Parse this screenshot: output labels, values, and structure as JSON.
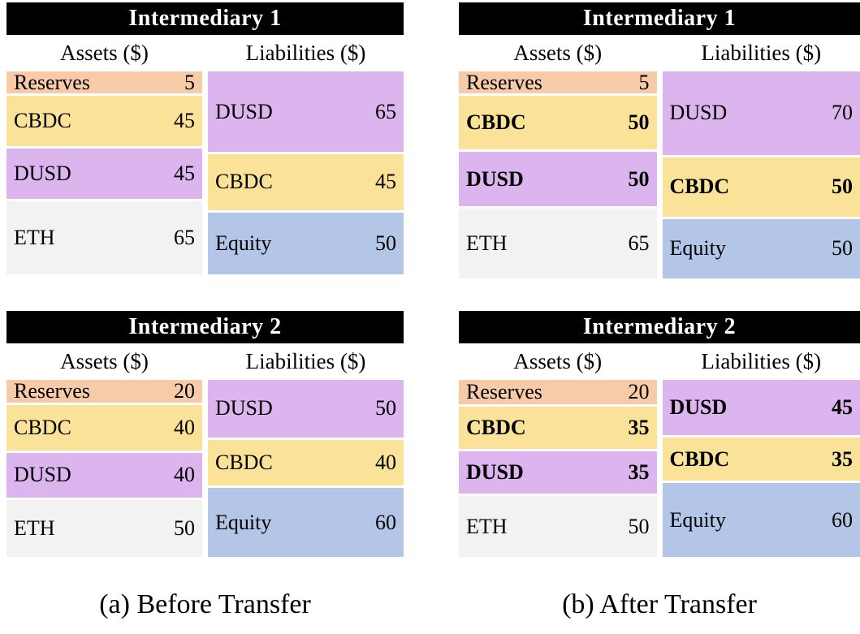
{
  "colors": {
    "reserves": "#f8cba8",
    "cbdc": "#fae399",
    "dusd": "#dcb4ee",
    "eth": "#f2f2f2",
    "equity": "#b4c6e7",
    "title_bg": "#000000",
    "title_text": "#ffffff"
  },
  "panels": [
    {
      "title": "Intermediary 1",
      "assets_header": "Assets ($)",
      "liabilities_header": "Liabilities ($)",
      "assets": [
        {
          "label": "Reserves",
          "value": 5,
          "color_key": "reserves",
          "bold": false
        },
        {
          "label": "CBDC",
          "value": 45,
          "color_key": "cbdc",
          "bold": false
        },
        {
          "label": "DUSD",
          "value": 45,
          "color_key": "dusd",
          "bold": false
        },
        {
          "label": "ETH",
          "value": 65,
          "color_key": "eth",
          "bold": false
        }
      ],
      "liabilities": [
        {
          "label": "DUSD",
          "value": 65,
          "color_key": "dusd",
          "bold": false
        },
        {
          "label": "CBDC",
          "value": 45,
          "color_key": "cbdc",
          "bold": false
        },
        {
          "label": "Equity",
          "value": 50,
          "color_key": "equity",
          "bold": false
        }
      ]
    },
    {
      "title": "Intermediary 1",
      "assets_header": "Assets ($)",
      "liabilities_header": "Liabilities ($)",
      "assets": [
        {
          "label": "Reserves",
          "value": 5,
          "color_key": "reserves",
          "bold": false
        },
        {
          "label": "CBDC",
          "value": 50,
          "color_key": "cbdc",
          "bold": true
        },
        {
          "label": "DUSD",
          "value": 50,
          "color_key": "dusd",
          "bold": true
        },
        {
          "label": "ETH",
          "value": 65,
          "color_key": "eth",
          "bold": false
        }
      ],
      "liabilities": [
        {
          "label": "DUSD",
          "value": 70,
          "color_key": "dusd",
          "bold": false
        },
        {
          "label": "CBDC",
          "value": 50,
          "color_key": "cbdc",
          "bold": true
        },
        {
          "label": "Equity",
          "value": 50,
          "color_key": "equity",
          "bold": false
        }
      ]
    },
    {
      "title": "Intermediary 2",
      "assets_header": "Assets ($)",
      "liabilities_header": "Liabilities ($)",
      "assets": [
        {
          "label": "Reserves",
          "value": 20,
          "color_key": "reserves",
          "bold": false
        },
        {
          "label": "CBDC",
          "value": 40,
          "color_key": "cbdc",
          "bold": false
        },
        {
          "label": "DUSD",
          "value": 40,
          "color_key": "dusd",
          "bold": false
        },
        {
          "label": "ETH",
          "value": 50,
          "color_key": "eth",
          "bold": false
        }
      ],
      "liabilities": [
        {
          "label": "DUSD",
          "value": 50,
          "color_key": "dusd",
          "bold": false
        },
        {
          "label": "CBDC",
          "value": 40,
          "color_key": "cbdc",
          "bold": false
        },
        {
          "label": "Equity",
          "value": 60,
          "color_key": "equity",
          "bold": false
        }
      ]
    },
    {
      "title": "Intermediary 2",
      "assets_header": "Assets ($)",
      "liabilities_header": "Liabilities ($)",
      "assets": [
        {
          "label": "Reserves",
          "value": 20,
          "color_key": "reserves",
          "bold": false
        },
        {
          "label": "CBDC",
          "value": 35,
          "color_key": "cbdc",
          "bold": true
        },
        {
          "label": "DUSD",
          "value": 35,
          "color_key": "dusd",
          "bold": true
        },
        {
          "label": "ETH",
          "value": 50,
          "color_key": "eth",
          "bold": false
        }
      ],
      "liabilities": [
        {
          "label": "DUSD",
          "value": 45,
          "color_key": "dusd",
          "bold": true
        },
        {
          "label": "CBDC",
          "value": 35,
          "color_key": "cbdc",
          "bold": true
        },
        {
          "label": "Equity",
          "value": 60,
          "color_key": "equity",
          "bold": false
        }
      ]
    }
  ],
  "captions": [
    {
      "label": "(a) Before Transfer"
    },
    {
      "label": "(b) After Transfer"
    }
  ]
}
